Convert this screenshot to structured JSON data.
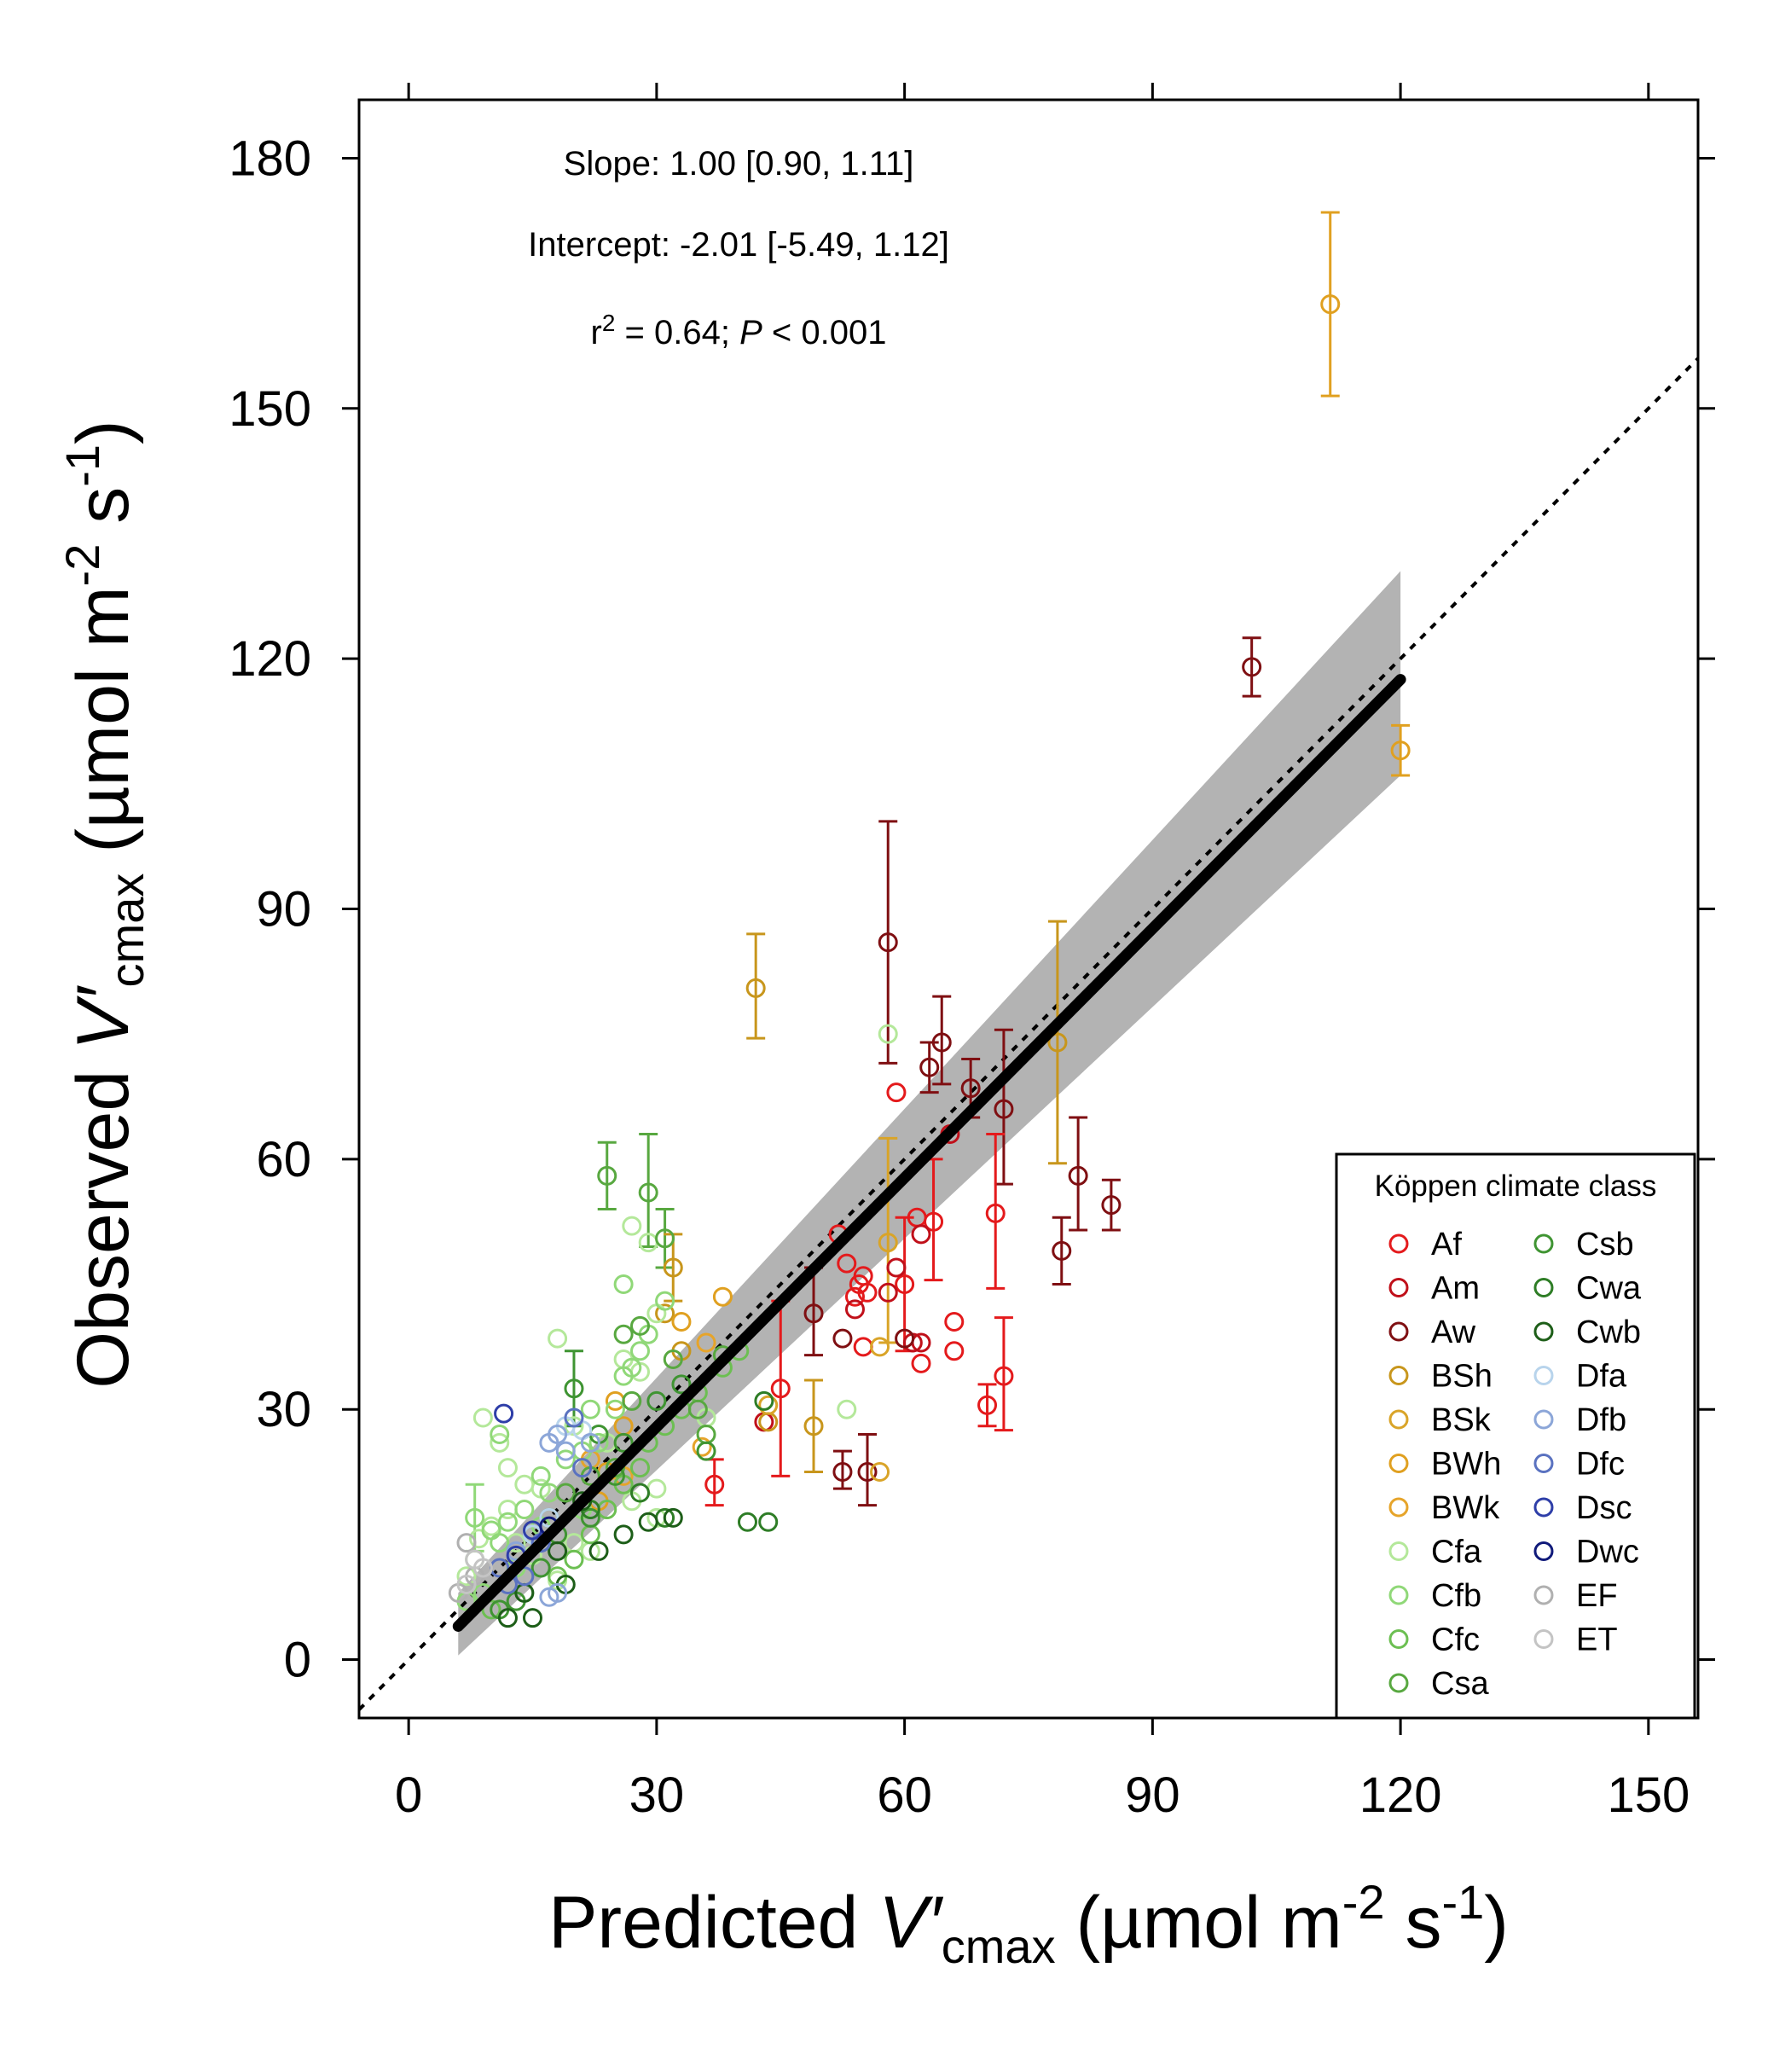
{
  "chart_data": {
    "type": "scatter",
    "xlabel": {
      "prefix": "Predicted ",
      "var": "V′",
      "sub": "cmax",
      "units_a": " (µmol m",
      "sup1": "-2",
      "units_b": " s",
      "sup2": "-1",
      "units_c": ")"
    },
    "ylabel": {
      "prefix": "Observed ",
      "var": "V′",
      "sub": "cmax",
      "units_a": " (µmol m",
      "sup1": "-2",
      "units_b": " s",
      "sup2": "-1",
      "units_c": ")"
    },
    "xlim": [
      -6,
      156
    ],
    "ylim": [
      -7,
      187
    ],
    "x_ticks": [
      0,
      30,
      60,
      90,
      120,
      150
    ],
    "y_ticks": [
      0,
      30,
      60,
      90,
      120,
      150,
      180
    ],
    "stats": {
      "slope": "Slope: 1.00 [0.90, 1.11]",
      "intercept": "Intercept: -2.01 [-5.49, 1.12]",
      "r2_r": "r",
      "r2_sup": "2",
      "r2_mid": " = 0.64; ",
      "r2_p": "P",
      "r2_end": " < 0.001"
    },
    "one_to_one_line": {
      "style": "dotted",
      "x": [
        -6,
        156
      ],
      "y": [
        -6,
        156
      ]
    },
    "fit_line": {
      "x": [
        6,
        120
      ],
      "y": [
        4.0,
        117.5
      ]
    },
    "confidence_band": {
      "x": [
        6,
        120
      ],
      "upper": [
        8.0,
        130.5
      ],
      "lower": [
        0.5,
        106.0
      ]
    },
    "legend": {
      "title": "Köppen climate class",
      "position": "bottom-right",
      "entries": [
        {
          "name": "Af",
          "color": "#e41a1c"
        },
        {
          "name": "Am",
          "color": "#c0101a"
        },
        {
          "name": "Aw",
          "color": "#7f0f12"
        },
        {
          "name": "BSh",
          "color": "#c8961c"
        },
        {
          "name": "BSk",
          "color": "#d9a428"
        },
        {
          "name": "BWh",
          "color": "#e0a020"
        },
        {
          "name": "BWk",
          "color": "#e6a42a"
        },
        {
          "name": "Cfa",
          "color": "#b4e89a"
        },
        {
          "name": "Cfb",
          "color": "#90d878"
        },
        {
          "name": "Cfc",
          "color": "#6cbf52"
        },
        {
          "name": "Csa",
          "color": "#58a840"
        },
        {
          "name": "Csb",
          "color": "#3f9432"
        },
        {
          "name": "Cwa",
          "color": "#2e7d26"
        },
        {
          "name": "Cwb",
          "color": "#1d5e18"
        },
        {
          "name": "Dfa",
          "color": "#b8d4ec"
        },
        {
          "name": "Dfb",
          "color": "#8ca6d8"
        },
        {
          "name": "Dfc",
          "color": "#5a72c0"
        },
        {
          "name": "Dsc",
          "color": "#2e3ea8"
        },
        {
          "name": "Dwc",
          "color": "#101a7a"
        },
        {
          "name": "EF",
          "color": "#b0b0b0"
        },
        {
          "name": "ET",
          "color": "#c4c4c4"
        }
      ]
    },
    "series": [
      {
        "name": "Af",
        "points": [
          [
            59,
            68
          ],
          [
            52,
            51
          ],
          [
            53,
            47.5
          ],
          [
            55,
            46
          ],
          [
            55.5,
            44
          ],
          [
            54,
            43.5
          ],
          [
            55,
            37.5
          ],
          [
            60,
            45
          ],
          [
            61.5,
            53
          ],
          [
            63.5,
            52.5
          ],
          [
            66,
            40.5
          ],
          [
            66,
            37
          ],
          [
            62,
            35.5
          ],
          [
            71,
            53.5
          ],
          [
            72,
            34
          ],
          [
            70,
            30.5
          ],
          [
            45,
            32.5
          ],
          [
            54.5,
            45
          ],
          [
            37,
            21
          ]
        ]
      },
      {
        "name": "Am",
        "points": [
          [
            58,
            44
          ],
          [
            59,
            47
          ],
          [
            62,
            38
          ],
          [
            61,
            38
          ],
          [
            62,
            51
          ],
          [
            65.5,
            63
          ],
          [
            54,
            42
          ],
          [
            43,
            28.5
          ]
        ]
      },
      {
        "name": "Aw",
        "points": [
          [
            58,
            86
          ],
          [
            63,
            71
          ],
          [
            64.5,
            74
          ],
          [
            68,
            68.5
          ],
          [
            72,
            66
          ],
          [
            79,
            49
          ],
          [
            81,
            58
          ],
          [
            85,
            54.5
          ],
          [
            102,
            119
          ],
          [
            49,
            41.5
          ],
          [
            52.5,
            22.5
          ],
          [
            55.5,
            22.5
          ],
          [
            52.5,
            38.5
          ],
          [
            60,
            38.5
          ]
        ]
      },
      {
        "name": "BSh",
        "points": [
          [
            42,
            80.5
          ],
          [
            78.5,
            74
          ],
          [
            49,
            28
          ],
          [
            43.5,
            28.5
          ],
          [
            32,
            47
          ],
          [
            31,
            41.5
          ],
          [
            33,
            37
          ]
        ]
      },
      {
        "name": "BSk",
        "points": [
          [
            58,
            50
          ],
          [
            57,
            37.5
          ],
          [
            57,
            22.5
          ],
          [
            43.5,
            30.5
          ]
        ]
      },
      {
        "name": "BWh",
        "points": [
          [
            111.5,
            162.5
          ],
          [
            120,
            109
          ],
          [
            33,
            40.5
          ],
          [
            38,
            43.5
          ],
          [
            25,
            31
          ],
          [
            26,
            28
          ],
          [
            24,
            22.5
          ],
          [
            23,
            19
          ]
        ]
      },
      {
        "name": "BWk",
        "points": [
          [
            35.5,
            25.5
          ],
          [
            36,
            38
          ],
          [
            26,
            22
          ],
          [
            22,
            24
          ]
        ]
      },
      {
        "name": "Cfa",
        "points": [
          [
            27,
            52
          ],
          [
            29,
            50
          ],
          [
            53,
            30
          ],
          [
            58,
            75
          ],
          [
            30,
            41.5
          ],
          [
            26,
            36
          ],
          [
            28,
            34.5
          ],
          [
            20,
            28
          ],
          [
            24,
            26
          ],
          [
            30,
            17
          ],
          [
            22,
            13
          ],
          [
            18,
            9.5
          ],
          [
            15,
            12.5
          ],
          [
            13,
            14
          ],
          [
            10,
            16
          ],
          [
            8,
            12
          ],
          [
            7,
            10
          ],
          [
            8.5,
            14.5
          ],
          [
            12,
            18
          ],
          [
            14,
            21
          ],
          [
            16,
            20.5
          ],
          [
            11,
            26
          ],
          [
            9,
            29
          ],
          [
            12,
            23
          ],
          [
            18,
            38.5
          ],
          [
            30,
            20.5
          ],
          [
            27,
            19
          ],
          [
            20,
            14
          ],
          [
            36,
            29
          ]
        ]
      },
      {
        "name": "Cfb",
        "points": [
          [
            8,
            17
          ],
          [
            10,
            15.5
          ],
          [
            11,
            14
          ],
          [
            12,
            16.5
          ],
          [
            14,
            18
          ],
          [
            16,
            22
          ],
          [
            19,
            24
          ],
          [
            21,
            25
          ],
          [
            23,
            26
          ],
          [
            25,
            30
          ],
          [
            26,
            34
          ],
          [
            27,
            35
          ],
          [
            28,
            37
          ],
          [
            29,
            39
          ],
          [
            31,
            43
          ],
          [
            26,
            45
          ],
          [
            22,
            30
          ],
          [
            17,
            20
          ],
          [
            15,
            15
          ],
          [
            13,
            11
          ],
          [
            9,
            8
          ],
          [
            7,
            7
          ],
          [
            11,
            27
          ],
          [
            16,
            16
          ],
          [
            21,
            18
          ]
        ]
      },
      {
        "name": "Cfc",
        "points": [
          [
            22,
            15
          ],
          [
            24,
            18
          ],
          [
            26,
            21
          ],
          [
            28,
            23
          ],
          [
            29,
            26
          ],
          [
            31,
            28
          ],
          [
            33,
            30
          ],
          [
            35,
            32
          ],
          [
            38,
            35
          ],
          [
            40,
            37
          ],
          [
            20,
            12
          ],
          [
            18,
            10
          ],
          [
            14,
            8
          ],
          [
            10,
            6
          ]
        ]
      },
      {
        "name": "Csa",
        "points": [
          [
            24,
            58
          ],
          [
            29,
            56
          ],
          [
            31,
            50.5
          ],
          [
            26,
            39
          ],
          [
            28,
            40
          ],
          [
            32,
            36
          ],
          [
            36,
            27
          ],
          [
            38,
            36.5
          ],
          [
            35,
            30
          ],
          [
            27,
            31
          ],
          [
            22,
            22
          ],
          [
            19,
            20
          ],
          [
            17,
            17
          ],
          [
            25,
            23
          ]
        ]
      },
      {
        "name": "Csb",
        "points": [
          [
            20,
            32.5
          ],
          [
            23,
            27
          ],
          [
            25,
            22
          ],
          [
            18,
            15
          ],
          [
            22,
            17
          ],
          [
            26,
            26
          ],
          [
            30,
            31
          ],
          [
            33,
            33
          ],
          [
            16,
            11
          ],
          [
            13,
            7
          ],
          [
            11,
            6
          ],
          [
            36,
            25
          ]
        ]
      },
      {
        "name": "Cwa",
        "points": [
          [
            41,
            16.5
          ],
          [
            43.5,
            16.5
          ],
          [
            31,
            17
          ],
          [
            43,
            31
          ],
          [
            28,
            20
          ],
          [
            22,
            18
          ]
        ]
      },
      {
        "name": "Cwb",
        "points": [
          [
            32,
            17
          ],
          [
            29,
            16.5
          ],
          [
            21,
            19
          ],
          [
            18,
            13
          ],
          [
            14,
            8
          ],
          [
            12,
            5
          ],
          [
            15,
            5
          ],
          [
            19,
            9
          ],
          [
            23,
            13
          ],
          [
            26,
            15
          ]
        ]
      },
      {
        "name": "Dfa",
        "points": [
          [
            19,
            28
          ],
          [
            21,
            27.5
          ],
          [
            17,
            17
          ],
          [
            15,
            15
          ]
        ]
      },
      {
        "name": "Dfb",
        "points": [
          [
            17,
            26
          ],
          [
            19,
            25
          ],
          [
            18,
            27
          ],
          [
            22,
            26
          ],
          [
            16,
            14
          ],
          [
            13,
            13
          ],
          [
            18,
            8
          ],
          [
            17,
            7.5
          ]
        ]
      },
      {
        "name": "Dfc",
        "points": [
          [
            20,
            29
          ],
          [
            21,
            23
          ],
          [
            11,
            11
          ],
          [
            12,
            9
          ],
          [
            14,
            10
          ],
          [
            16,
            14
          ]
        ]
      },
      {
        "name": "Dsc",
        "points": [
          [
            11.5,
            29.5
          ],
          [
            13,
            12.5
          ],
          [
            15,
            15.5
          ]
        ]
      },
      {
        "name": "Dwc",
        "points": [
          [
            17,
            16
          ]
        ]
      },
      {
        "name": "EF",
        "points": [
          [
            7,
            14
          ],
          [
            6,
            8
          ],
          [
            8,
            10
          ]
        ]
      },
      {
        "name": "ET",
        "points": [
          [
            8,
            12
          ],
          [
            9,
            11
          ],
          [
            7,
            9
          ]
        ]
      }
    ],
    "error_bars": [
      {
        "series": "BWh",
        "x": 111.5,
        "y": 162.5,
        "lo": 151.5,
        "hi": 173.5
      },
      {
        "series": "Aw",
        "x": 102,
        "y": 119,
        "lo": 115.5,
        "hi": 122.5
      },
      {
        "series": "BWh",
        "x": 120,
        "y": 109,
        "lo": 106,
        "hi": 112
      },
      {
        "series": "BSh",
        "x": 42,
        "y": 80.5,
        "lo": 74.5,
        "hi": 87
      },
      {
        "series": "Aw",
        "x": 58,
        "y": 86,
        "lo": 71.5,
        "hi": 100.5
      },
      {
        "series": "BSh",
        "x": 78.5,
        "y": 74,
        "lo": 59.5,
        "hi": 88.5
      },
      {
        "series": "Aw",
        "x": 64.5,
        "y": 74,
        "lo": 69,
        "hi": 79.5
      },
      {
        "series": "Aw",
        "x": 63,
        "y": 71,
        "lo": 68,
        "hi": 74
      },
      {
        "series": "Aw",
        "x": 68,
        "y": 68.5,
        "lo": 65,
        "hi": 72
      },
      {
        "series": "Aw",
        "x": 72,
        "y": 66,
        "lo": 57,
        "hi": 75.5
      },
      {
        "series": "Aw",
        "x": 81,
        "y": 58,
        "lo": 51.5,
        "hi": 65
      },
      {
        "series": "Aw",
        "x": 85,
        "y": 54.5,
        "lo": 51.5,
        "hi": 57.5
      },
      {
        "series": "Aw",
        "x": 79,
        "y": 49,
        "lo": 45,
        "hi": 53
      },
      {
        "series": "Af",
        "x": 71,
        "y": 53.5,
        "lo": 44.5,
        "hi": 63
      },
      {
        "series": "Af",
        "x": 72,
        "y": 34,
        "lo": 27.5,
        "hi": 41
      },
      {
        "series": "Af",
        "x": 70,
        "y": 30.5,
        "lo": 28,
        "hi": 33
      },
      {
        "series": "Af",
        "x": 63.5,
        "y": 52.5,
        "lo": 45.5,
        "hi": 60
      },
      {
        "series": "Af",
        "x": 45,
        "y": 32.5,
        "lo": 22,
        "hi": 43
      },
      {
        "series": "Aw",
        "x": 55.5,
        "y": 22.5,
        "lo": 18.5,
        "hi": 27
      },
      {
        "series": "Aw",
        "x": 52.5,
        "y": 22.5,
        "lo": 20.5,
        "hi": 25
      },
      {
        "series": "Aw",
        "x": 49,
        "y": 41.5,
        "lo": 36.5,
        "hi": 47
      },
      {
        "series": "BSh",
        "x": 49,
        "y": 28,
        "lo": 22.5,
        "hi": 33.5
      },
      {
        "series": "Csa",
        "x": 24,
        "y": 58,
        "lo": 54,
        "hi": 62
      },
      {
        "series": "Csa",
        "x": 29,
        "y": 56,
        "lo": 49.5,
        "hi": 63
      },
      {
        "series": "Csa",
        "x": 31,
        "y": 50.5,
        "lo": 47,
        "hi": 54
      },
      {
        "series": "BSh",
        "x": 32,
        "y": 47,
        "lo": 43,
        "hi": 51
      },
      {
        "series": "Af",
        "x": 37,
        "y": 21,
        "lo": 18.5,
        "hi": 24
      },
      {
        "series": "Cfb",
        "x": 8,
        "y": 17,
        "lo": 13,
        "hi": 21
      },
      {
        "series": "Csb",
        "x": 20,
        "y": 32.5,
        "lo": 28,
        "hi": 37
      },
      {
        "series": "BSk",
        "x": 58,
        "y": 50,
        "lo": 38,
        "hi": 62.5
      },
      {
        "series": "Af",
        "x": 60,
        "y": 45,
        "lo": 37,
        "hi": 53
      }
    ]
  }
}
